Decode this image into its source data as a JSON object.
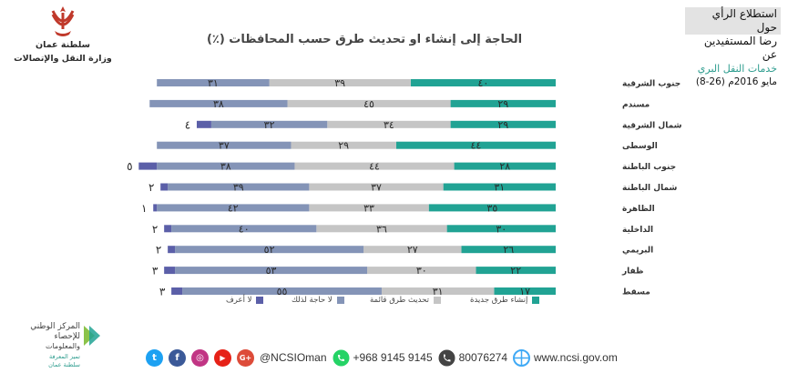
{
  "header": {
    "org_name": "سلطنة عمان",
    "ministry": "وزارة النقل والإتصالات",
    "survey_title": "استطلاع الرأي حول",
    "survey_subtitle": "رضا المستفيدين عن",
    "survey_service": "خدمات النقل البري",
    "survey_date": "(8-26) مايو 2016م"
  },
  "colors": {
    "new_roads": "#21a394",
    "update_roads": "#c5c5c5",
    "no_need": "#8494b7",
    "dont_know": "#5b5fa8",
    "title_text": "#444444",
    "brand": "#2e9d8f"
  },
  "chart_data": {
    "type": "bar",
    "stacked": true,
    "orientation": "horizontal",
    "title": "الحاجة إلى إنشاء او تحديث طرق حسب المحافظات (٪)",
    "categories": [
      "جنوب الشرقية",
      "مسندم",
      "شمال الشرقية",
      "الوسطى",
      "جنوب الباطنة",
      "شمال الباطنة",
      "الظاهرة",
      "الداخلية",
      "البريمي",
      "ظفار",
      "مسقط"
    ],
    "series": [
      {
        "name": "إنشاء طرق جديدة",
        "values": [
          40,
          29,
          29,
          44,
          28,
          31,
          35,
          30,
          26,
          22,
          17
        ],
        "labels": [
          "٤٠",
          "٢٩",
          "٢٩",
          "٤٤",
          "٢٨",
          "٣١",
          "٣٥",
          "٣٠",
          "٢٦",
          "٢٢",
          "١٧"
        ]
      },
      {
        "name": "تحديث طرق قائمة",
        "values": [
          39,
          45,
          34,
          29,
          44,
          37,
          33,
          36,
          27,
          30,
          31
        ],
        "labels": [
          "٣٩",
          "٤٥",
          "٣٤",
          "٢٩",
          "٤٤",
          "٣٧",
          "٣٣",
          "٣٦",
          "٢٧",
          "٣٠",
          "٣١"
        ]
      },
      {
        "name": "لا حاجة لذلك",
        "values": [
          31,
          38,
          32,
          37,
          38,
          39,
          42,
          40,
          52,
          53,
          55
        ],
        "labels": [
          "٣١",
          "٣٨",
          "٣٢",
          "٣٧",
          "٣٨",
          "٣٩",
          "٤٢",
          "٤٠",
          "٥٢",
          "٥٣",
          "٥٥"
        ]
      },
      {
        "name": "لا أعرف",
        "values": [
          0,
          0,
          4,
          0,
          5,
          2,
          1,
          2,
          2,
          3,
          3
        ],
        "labels": [
          "",
          "",
          "٤",
          "",
          "٥",
          "٢",
          "١",
          "٢",
          "٢",
          "٣",
          "٣"
        ]
      }
    ],
    "legend_position": "bottom"
  },
  "footer": {
    "ncsi_line1": "المركز الوطني",
    "ncsi_line2": "للإحصاء",
    "ncsi_line3": "والمعلومات",
    "ncsi_tag": "تميز المعرفة",
    "ncsi_tag2": "سلطنة عمان",
    "handle": "@NCSIOman",
    "whatsapp": "+968 9145 9145",
    "phone": "80076274",
    "website": "www.ncsi.gov.om",
    "social_letters": {
      "twitter": "t",
      "facebook": "f",
      "instagram": "◎",
      "youtube": "▶",
      "google": "G+"
    }
  }
}
